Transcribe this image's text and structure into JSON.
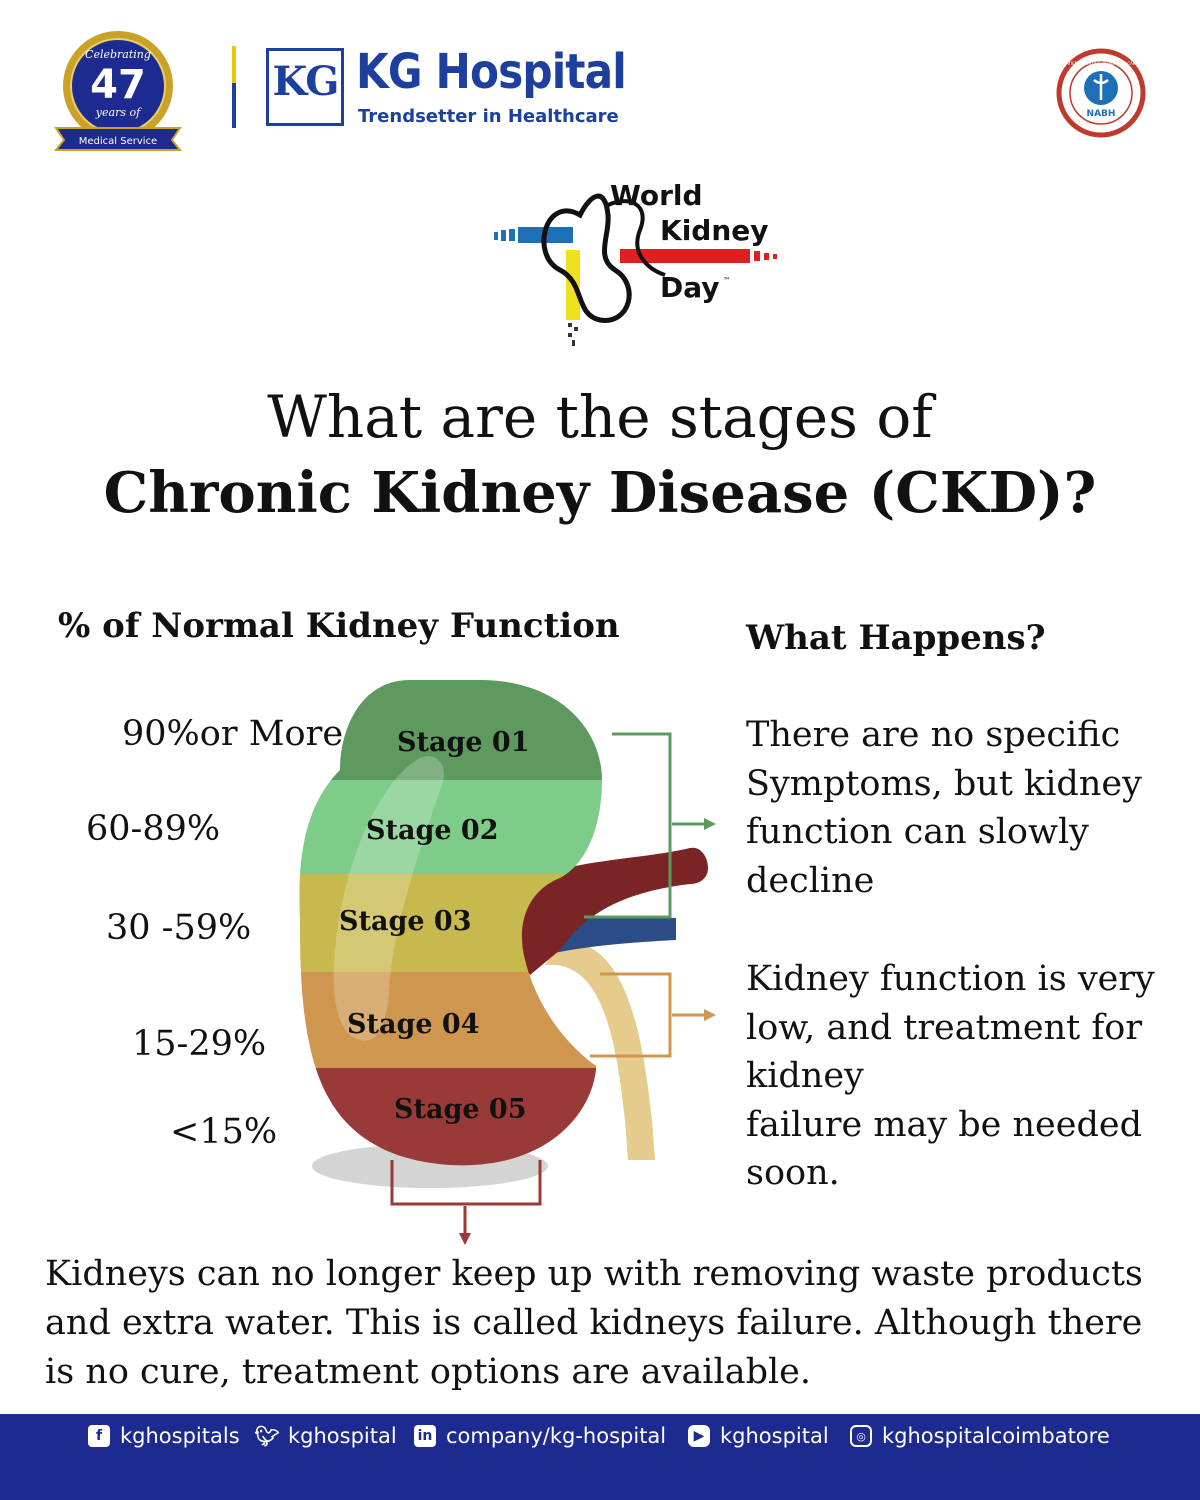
{
  "header": {
    "badge": {
      "line1": "Celebrating",
      "number": "47",
      "line2": "years of",
      "ribbon": "Medical Service"
    },
    "logo_mark": "KG",
    "hospital_name": "KG Hospital",
    "tagline": "Trendsetter in Healthcare",
    "nabh": "NABH",
    "nabh_ring_top": "PATIENT SAFETY & QUALITY OF CARE",
    "nabh_ring_bottom": "ACCREDITED"
  },
  "event_logo": {
    "line1": "World",
    "line2": "Kidney",
    "line3": "Day",
    "tm": "™"
  },
  "title": {
    "line1": "What are the stages of",
    "line2": "Chronic Kidney Disease (CKD)?"
  },
  "left_heading": "% of Normal Kidney Function",
  "right_heading": "What Happens?",
  "stages": [
    {
      "label": "Stage 01",
      "percent": "90%or More",
      "color": "#5e9a5f"
    },
    {
      "label": "Stage 02",
      "percent": "60-89%",
      "color": "#7ecc8a"
    },
    {
      "label": "Stage 03",
      "percent": "30 -59%",
      "color": "#c8b94e"
    },
    {
      "label": "Stage 04",
      "percent": "15-29%",
      "color": "#cf9650"
    },
    {
      "label": "Stage 05",
      "percent": "<15%",
      "color": "#9a3a38"
    }
  ],
  "descriptions": {
    "early": [
      "There are no specific",
      "Symptoms, but kidney",
      "function can slowly",
      "decline"
    ],
    "late": [
      "Kidney function is very",
      "low, and treatment for",
      "kidney",
      "failure may be needed",
      "soon."
    ],
    "failure": "Kidneys can no longer keep up with removing waste products and extra water. This is called kidneys failure. Although there is no cure, treatment options are available."
  },
  "footer": {
    "facebook": "kghospitals",
    "twitter": "kghospital",
    "linkedin": "company/kg-hospital",
    "youtube": "kghospital",
    "instagram": "kghospitalcoimbatore"
  },
  "colors": {
    "brand_blue": "#1d3f9e",
    "footer_bg": "#1d2a8f",
    "bracket_green": "#5e9a5f",
    "bracket_orange": "#cf9650",
    "bracket_red": "#9a3a38"
  }
}
